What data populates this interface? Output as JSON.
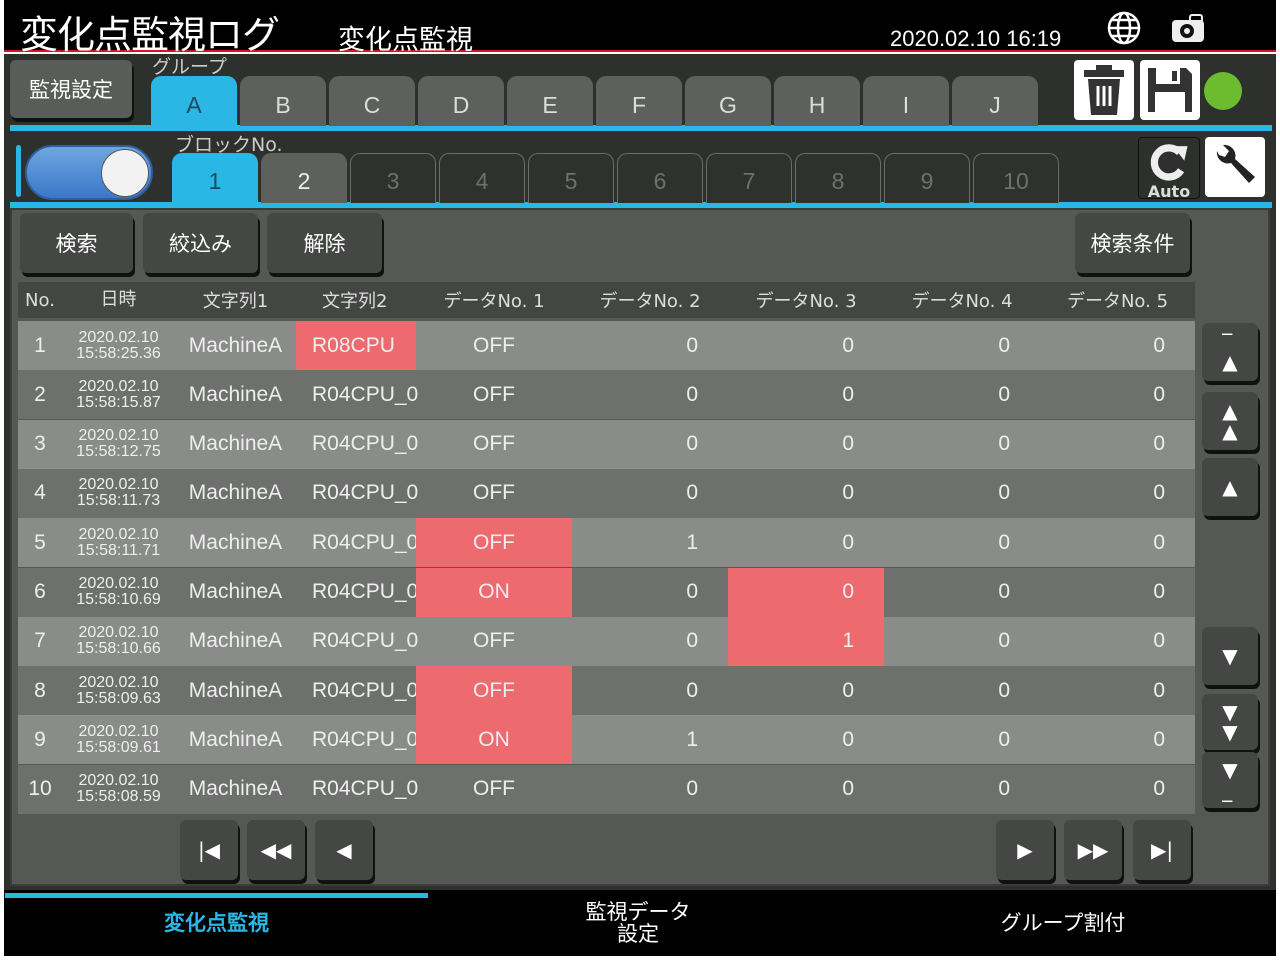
{
  "header": {
    "title": "変化点監視ログ",
    "subtitle": "変化点監視",
    "datetime": "2020.02.10  16:19",
    "icons": [
      "globe-icon",
      "camera-icon"
    ]
  },
  "toolbar": {
    "monitor_settings": "監視設定",
    "group_label": "グループ",
    "groups": [
      "A",
      "B",
      "C",
      "D",
      "E",
      "F",
      "G",
      "H",
      "I",
      "J"
    ],
    "active_group": "A",
    "status_color": "#6dbb2e",
    "accent": "#2bb7e6"
  },
  "blocks": {
    "label": "ブロックNo.",
    "items": [
      "1",
      "2",
      "3",
      "4",
      "5",
      "6",
      "7",
      "8",
      "9",
      "10"
    ],
    "active": "1",
    "enabled": [
      "1",
      "2"
    ],
    "toggle_on": true,
    "auto_label": "Auto"
  },
  "actions": {
    "search": "検索",
    "filter": "絞込み",
    "clear": "解除",
    "conditions": "検索条件"
  },
  "table": {
    "columns": [
      "No.",
      "日時",
      "文字列1",
      "文字列2",
      "データNo. 1",
      "データNo. 2",
      "データNo. 3",
      "データNo. 4",
      "データNo. 5"
    ],
    "highlight_color": "#ed6a6e",
    "rows": [
      {
        "no": "1",
        "date": "2020.02.10",
        "time": "15:58:25.36",
        "s1": "MachineA",
        "s2": "R08CPU",
        "d1": "OFF",
        "d2": "0",
        "d3": "0",
        "d4": "0",
        "d5": "0",
        "hl": [
          "s2"
        ]
      },
      {
        "no": "2",
        "date": "2020.02.10",
        "time": "15:58:15.87",
        "s1": "MachineA",
        "s2": "R04CPU_0",
        "d1": "OFF",
        "d2": "0",
        "d3": "0",
        "d4": "0",
        "d5": "0",
        "hl": []
      },
      {
        "no": "3",
        "date": "2020.02.10",
        "time": "15:58:12.75",
        "s1": "MachineA",
        "s2": "R04CPU_0",
        "d1": "OFF",
        "d2": "0",
        "d3": "0",
        "d4": "0",
        "d5": "0",
        "hl": []
      },
      {
        "no": "4",
        "date": "2020.02.10",
        "time": "15:58:11.73",
        "s1": "MachineA",
        "s2": "R04CPU_0",
        "d1": "OFF",
        "d2": "0",
        "d3": "0",
        "d4": "0",
        "d5": "0",
        "hl": []
      },
      {
        "no": "5",
        "date": "2020.02.10",
        "time": "15:58:11.71",
        "s1": "MachineA",
        "s2": "R04CPU_0",
        "d1": "OFF",
        "d2": "1",
        "d3": "0",
        "d4": "0",
        "d5": "0",
        "hl": [
          "d1"
        ]
      },
      {
        "no": "6",
        "date": "2020.02.10",
        "time": "15:58:10.69",
        "s1": "MachineA",
        "s2": "R04CPU_0",
        "d1": "ON",
        "d2": "0",
        "d3": "0",
        "d4": "0",
        "d5": "0",
        "hl": [
          "d1",
          "d3"
        ]
      },
      {
        "no": "7",
        "date": "2020.02.10",
        "time": "15:58:10.66",
        "s1": "MachineA",
        "s2": "R04CPU_0",
        "d1": "OFF",
        "d2": "0",
        "d3": "1",
        "d4": "0",
        "d5": "0",
        "hl": [
          "d3"
        ]
      },
      {
        "no": "8",
        "date": "2020.02.10",
        "time": "15:58:09.63",
        "s1": "MachineA",
        "s2": "R04CPU_0",
        "d1": "OFF",
        "d2": "0",
        "d3": "0",
        "d4": "0",
        "d5": "0",
        "hl": [
          "d1"
        ]
      },
      {
        "no": "9",
        "date": "2020.02.10",
        "time": "15:58:09.61",
        "s1": "MachineA",
        "s2": "R04CPU_0",
        "d1": "ON",
        "d2": "1",
        "d3": "0",
        "d4": "0",
        "d5": "0",
        "hl": [
          "d1"
        ]
      },
      {
        "no": "10",
        "date": "2020.02.10",
        "time": "15:58:08.59",
        "s1": "MachineA",
        "s2": "R04CPU_0",
        "d1": "OFF",
        "d2": "0",
        "d3": "0",
        "d4": "0",
        "d5": "0",
        "hl": []
      }
    ]
  },
  "nav": {
    "tabs": [
      "変化点監視",
      "監視データ\n設定",
      "グループ割付"
    ],
    "active": "変化点監視"
  }
}
